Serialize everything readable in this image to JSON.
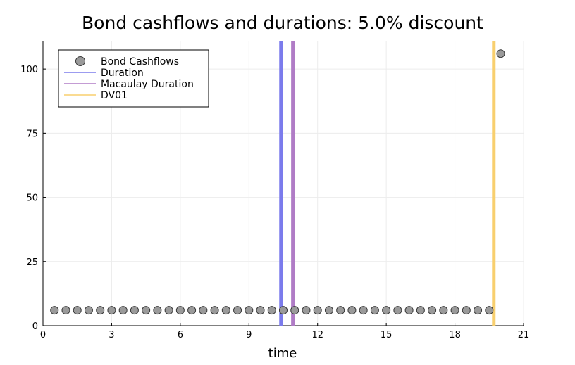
{
  "chart_data": {
    "type": "scatter",
    "title": "Bond cashflows and durations: 5.0% discount",
    "xlabel": "time",
    "ylabel": "",
    "xlim": [
      0,
      21
    ],
    "ylim": [
      0,
      111
    ],
    "x_ticks": [
      "0",
      "3",
      "6",
      "9",
      "12",
      "15",
      "18",
      "21"
    ],
    "y_ticks": [
      "0",
      "25",
      "50",
      "75",
      "100"
    ],
    "grid": true,
    "legend_position": "top-left",
    "series": [
      {
        "name": "Bond Cashflows",
        "kind": "scatter",
        "color": "#9a9a9a",
        "points": [
          [
            0.5,
            6
          ],
          [
            1.0,
            6
          ],
          [
            1.5,
            6
          ],
          [
            2.0,
            6
          ],
          [
            2.5,
            6
          ],
          [
            3.0,
            6
          ],
          [
            3.5,
            6
          ],
          [
            4.0,
            6
          ],
          [
            4.5,
            6
          ],
          [
            5.0,
            6
          ],
          [
            5.5,
            6
          ],
          [
            6.0,
            6
          ],
          [
            6.5,
            6
          ],
          [
            7.0,
            6
          ],
          [
            7.5,
            6
          ],
          [
            8.0,
            6
          ],
          [
            8.5,
            6
          ],
          [
            9.0,
            6
          ],
          [
            9.5,
            6
          ],
          [
            10.0,
            6
          ],
          [
            10.5,
            6
          ],
          [
            11.0,
            6
          ],
          [
            11.5,
            6
          ],
          [
            12.0,
            6
          ],
          [
            12.5,
            6
          ],
          [
            13.0,
            6
          ],
          [
            13.5,
            6
          ],
          [
            14.0,
            6
          ],
          [
            14.5,
            6
          ],
          [
            15.0,
            6
          ],
          [
            15.5,
            6
          ],
          [
            16.0,
            6
          ],
          [
            16.5,
            6
          ],
          [
            17.0,
            6
          ],
          [
            17.5,
            6
          ],
          [
            18.0,
            6
          ],
          [
            18.5,
            6
          ],
          [
            19.0,
            6
          ],
          [
            19.5,
            6
          ],
          [
            20.0,
            106
          ]
        ]
      },
      {
        "name": "Duration",
        "kind": "vline",
        "x": 10.4,
        "color": "#7b7bec"
      },
      {
        "name": "Macaulay Duration",
        "kind": "vline",
        "x": 10.92,
        "color": "#b07cc6"
      },
      {
        "name": "DV01",
        "kind": "vline",
        "x": 19.7,
        "color": "#f8cf6e"
      }
    ]
  }
}
